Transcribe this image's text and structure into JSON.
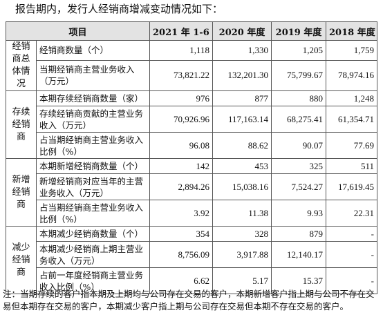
{
  "intro": "报告期内，发行人经销商增减变动情况如下：",
  "header": {
    "item": "项目",
    "y2021": "2021 年 1-6 月",
    "y2020": "2020 年度",
    "y2019": "2019 年度",
    "y2018": "2018 年度"
  },
  "groups": [
    {
      "label": "经销商总体情况",
      "rows": [
        {
          "item": "经销商数量（个）",
          "v2021": "1,118",
          "v2020": "1,330",
          "v2019": "1,205",
          "v2018": "1,759"
        },
        {
          "item": "当期经销商主营业务收入（万元）",
          "v2021": "73,821.22",
          "v2020": "132,201.30",
          "v2019": "75,799.67",
          "v2018": "78,974.16"
        }
      ]
    },
    {
      "label": "存续经销商",
      "rows": [
        {
          "item": "本期存续经销商数量（家）",
          "v2021": "976",
          "v2020": "877",
          "v2019": "880",
          "v2018": "1,248"
        },
        {
          "item": "存续经销商贡献的主营业务收入（万元）",
          "v2021": "70,926.96",
          "v2020": "117,163.14",
          "v2019": "68,275.41",
          "v2018": "61,354.71"
        },
        {
          "item": "占当期经销商主营业务收入比例（%）",
          "v2021": "96.08",
          "v2020": "88.62",
          "v2019": "90.07",
          "v2018": "77.69"
        }
      ]
    },
    {
      "label": "新增经销商",
      "rows": [
        {
          "item": "本期新增经销商数量（个）",
          "v2021": "142",
          "v2020": "453",
          "v2019": "325",
          "v2018": "511"
        },
        {
          "item": "新增经销商对应当年的主营业务收入（万元）",
          "v2021": "2,894.26",
          "v2020": "15,038.16",
          "v2019": "7,524.27",
          "v2018": "17,619.45"
        },
        {
          "item": "占当期经销商主营业务收入比例（%）",
          "v2021": "3.92",
          "v2020": "11.38",
          "v2019": "9.93",
          "v2018": "22.31"
        }
      ]
    },
    {
      "label": "减少经销商",
      "rows": [
        {
          "item": "本期减少经销商数量（个）",
          "v2021": "354",
          "v2020": "328",
          "v2019": "879",
          "v2018": "-"
        },
        {
          "item": "本期减少经销商上期主营业务收入（万元）",
          "v2021": "8,756.09",
          "v2020": "3,917.88",
          "v2019": "12,140.17",
          "v2018": "-"
        },
        {
          "item": "占前一年度经销商主营业务收入比例（%）",
          "v2021": "6.62",
          "v2020": "5.17",
          "v2019": "15.37",
          "v2018": "-"
        }
      ]
    }
  ],
  "note": "注：当期存续的客户指本期及上期均与公司存在交易的客户，本期新增客户指上期与公司不存在交易但本期存在交易的客户，本期减少客户指上期与公司存在交易但本期不存在交易的客户。"
}
